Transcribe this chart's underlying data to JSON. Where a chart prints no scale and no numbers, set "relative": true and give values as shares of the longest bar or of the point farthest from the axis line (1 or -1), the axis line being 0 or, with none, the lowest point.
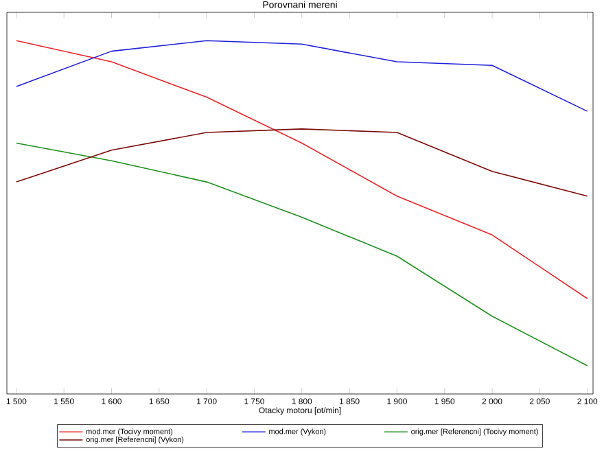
{
  "chart_data": {
    "type": "line",
    "title": "Porovnani mereni",
    "xlabel": "Otacky motoru [ot/min]",
    "relative": true,
    "x": [
      1500,
      1600,
      1700,
      1800,
      1900,
      2000,
      2100
    ],
    "xlim": [
      1490,
      2106
    ],
    "xticks": [
      {
        "value": 1500,
        "label": "1 500"
      },
      {
        "value": 1550,
        "label": "1 550"
      },
      {
        "value": 1600,
        "label": "1 600"
      },
      {
        "value": 1650,
        "label": "1 650"
      },
      {
        "value": 1700,
        "label": "1 700"
      },
      {
        "value": 1750,
        "label": "1 750"
      },
      {
        "value": 1800,
        "label": "1 800"
      },
      {
        "value": 1850,
        "label": "1 850"
      },
      {
        "value": 1900,
        "label": "1 900"
      },
      {
        "value": 1950,
        "label": "1 950"
      },
      {
        "value": 2000,
        "label": "2 000"
      },
      {
        "value": 2050,
        "label": "2 050"
      },
      {
        "value": 2100,
        "label": "2 100"
      }
    ],
    "legend": "bottom",
    "marker": "none",
    "line_style": "solid",
    "series": [
      {
        "name": "mod.mer (Tocivy moment)",
        "color": "#e8262b",
        "values": [
          1.0,
          0.94,
          0.84,
          0.71,
          0.56,
          0.45,
          0.27
        ]
      },
      {
        "name": "mod.mer (Vykon)",
        "color": "#1f1fd8",
        "values": [
          0.87,
          0.97,
          1.0,
          0.99,
          0.94,
          0.93,
          0.8
        ]
      },
      {
        "name": "orig.mer [Referencni] (Tocivy moment)",
        "color": "#1f8f1f",
        "values": [
          0.71,
          0.66,
          0.6,
          0.5,
          0.39,
          0.22,
          0.08
        ]
      },
      {
        "name": "orig.mer [Referencni] (Vykon)",
        "color": "#7a0a0a",
        "values": [
          0.6,
          0.69,
          0.74,
          0.75,
          0.74,
          0.63,
          0.56
        ]
      }
    ]
  }
}
